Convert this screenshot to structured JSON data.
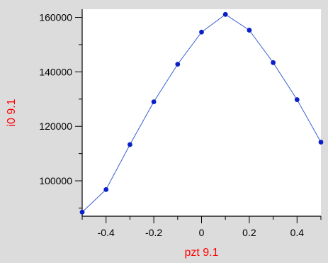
{
  "chart_data": {
    "type": "line",
    "title": "",
    "xlabel": "pzt 9.1",
    "ylabel": "i0 9.1",
    "xlim": [
      -0.5,
      0.5
    ],
    "ylim": [
      87000,
      163000
    ],
    "xticks": [
      -0.4,
      -0.2,
      0,
      0.2,
      0.4
    ],
    "xtick_labels": [
      "-0.4",
      "-0.2",
      "0",
      "0.2",
      "0.4"
    ],
    "yticks": [
      100000,
      120000,
      140000,
      160000
    ],
    "ytick_labels": [
      "100000",
      "120000",
      "140000",
      "160000"
    ],
    "grid": false,
    "series": [
      {
        "x": [
          -0.5,
          -0.4,
          -0.3,
          -0.2,
          -0.1,
          0.0,
          0.1,
          0.2,
          0.3,
          0.4,
          0.5
        ],
        "y": [
          88500,
          96800,
          113300,
          129000,
          142800,
          154600,
          161100,
          155300,
          143400,
          129800,
          114200
        ]
      }
    ]
  },
  "colors": {
    "background": "#dcdcdc",
    "plot_background": "#ffffff",
    "axis_title": "#ff0000",
    "series_line": "#3a5fd0",
    "series_marker": "#0a1fc8"
  }
}
